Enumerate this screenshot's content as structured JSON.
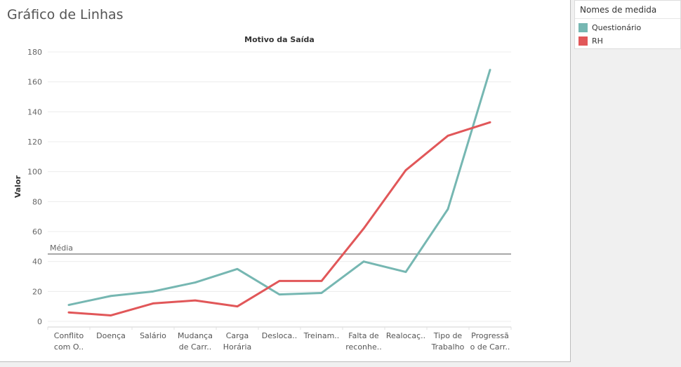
{
  "page_title": "Gráfico de Linhas",
  "legend": {
    "title": "Nomes de medida",
    "items": [
      {
        "label": "Questionário",
        "color": "#76b7b2"
      },
      {
        "label": "RH",
        "color": "#e15759"
      }
    ]
  },
  "chart_data": {
    "type": "line",
    "title": "Motivo da Saída",
    "xlabel": "",
    "ylabel": "Valor",
    "ylim": [
      0,
      180
    ],
    "yticks": [
      0,
      20,
      40,
      60,
      80,
      100,
      120,
      140,
      160,
      180
    ],
    "categories": [
      [
        "Conflito",
        "com O.."
      ],
      [
        "Doença"
      ],
      [
        "Salário"
      ],
      [
        "Mudança",
        "de Carr.."
      ],
      [
        "Carga",
        "Horária"
      ],
      [
        "Desloca.."
      ],
      [
        "Treinam.."
      ],
      [
        "Falta de",
        "reconhe.."
      ],
      [
        "Realocaç.."
      ],
      [
        "Tipo de",
        "Trabalho"
      ],
      [
        "Progressã",
        "o de Carr.."
      ]
    ],
    "series": [
      {
        "name": "Questionário",
        "color": "#76b7b2",
        "values": [
          11,
          17,
          20,
          26,
          35,
          18,
          19,
          40,
          33,
          75,
          168
        ]
      },
      {
        "name": "RH",
        "color": "#e15759",
        "values": [
          6,
          4,
          12,
          14,
          10,
          27,
          27,
          62,
          101,
          124,
          133
        ]
      }
    ],
    "reference_line": {
      "label": "Média",
      "value": 45,
      "color": "#8c8c8c"
    },
    "grid": true
  }
}
